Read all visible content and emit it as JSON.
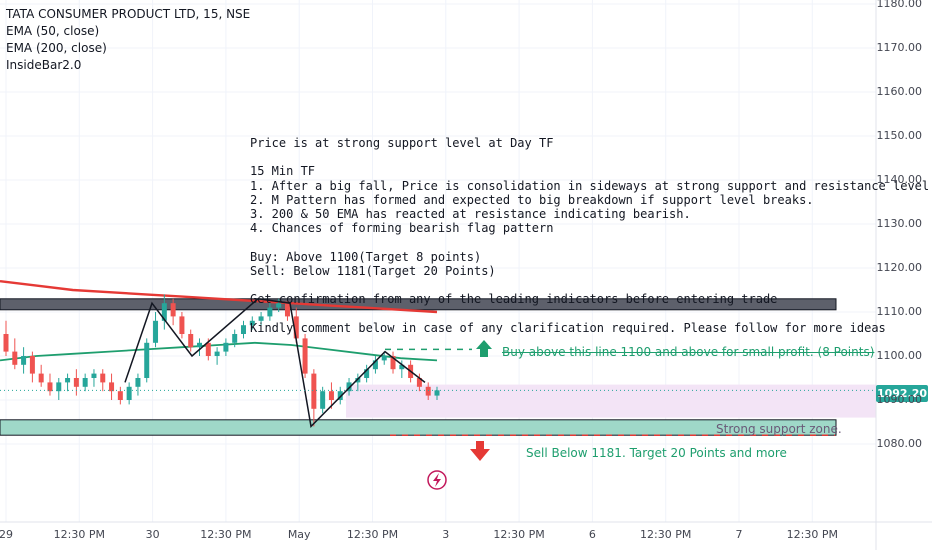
{
  "legend": {
    "symbol": "TATA CONSUMER PRODUCT LTD, 15, NSE",
    "ema50": "EMA (50, close)",
    "ema200": "EMA (200, close)",
    "indicator": "InsideBar2.0"
  },
  "note_text": "Price is at strong support level at Day TF\n\n15 Min TF\n1. After a big fall, Price is consolidation in sideways at strong support and resistance level.\n2. M Pattern has formed and expected to big breakdown if support level breaks.\n3. 200 & 50 EMA has reacted at resistance indicating bearish.\n4. Chances of forming bearish flag pattern\n\nBuy: Above 1100(Target 8 points)\nSell: Below 1181(Target 20 Points)\n\nGet confirmation from any of the leading indicators before entering trade\n\nKindly comment below in case of any clarification required. Please follow for more ideas",
  "annotations": {
    "buy_text": "Buy above this line 1100 and above  for small profit. (8 Points)",
    "sell_text": "Sell Below 1181. Target 20 Points and more",
    "support_text": "Strong support zone."
  },
  "current_price": "1092.20",
  "colors": {
    "up": "#26a69a",
    "down": "#ef5350",
    "ema50": "#1e9e6e",
    "ema200": "#e53935",
    "buy": "#1e9e6e",
    "sell": "#e53935",
    "support_fill": "#9fd8c8",
    "resistance_fill": "#5d606b",
    "range_fill": "#f3e4f6"
  },
  "chart_data": {
    "type": "candlestick",
    "y_ticks": [
      "1180.00",
      "1170.00",
      "1160.00",
      "1150.00",
      "1140.00",
      "1130.00",
      "1120.00",
      "1110.00",
      "1100.00",
      "1090.00",
      "1080.00"
    ],
    "x_ticks": [
      "29",
      "12:30 PM",
      "30",
      "12:30 PM",
      "May",
      "12:30 PM",
      "3",
      "12:30 PM",
      "6",
      "12:30 PM",
      "7",
      "12:30 PM"
    ],
    "ylim": [
      1076,
      1181
    ],
    "resistance_zone": [
      1110.5,
      1113
    ],
    "support_zone": [
      1082,
      1085.5
    ],
    "buy_line": 1101.5,
    "sell_line": 1082,
    "candles": [
      {
        "o": 1105,
        "h": 1108,
        "c": 1101,
        "l": 1100
      },
      {
        "o": 1101,
        "h": 1104,
        "c": 1098,
        "l": 1097
      },
      {
        "o": 1098,
        "h": 1102,
        "c": 1100,
        "l": 1096
      },
      {
        "o": 1100,
        "h": 1101,
        "c": 1096,
        "l": 1094
      },
      {
        "o": 1096,
        "h": 1098,
        "c": 1094,
        "l": 1093
      },
      {
        "o": 1094,
        "h": 1096,
        "c": 1092,
        "l": 1091
      },
      {
        "o": 1092,
        "h": 1095,
        "c": 1094,
        "l": 1090
      },
      {
        "o": 1094,
        "h": 1096,
        "c": 1095,
        "l": 1092
      },
      {
        "o": 1095,
        "h": 1097,
        "c": 1093,
        "l": 1091
      },
      {
        "o": 1093,
        "h": 1096,
        "c": 1095,
        "l": 1092
      },
      {
        "o": 1095,
        "h": 1097,
        "c": 1096,
        "l": 1093
      },
      {
        "o": 1096,
        "h": 1097,
        "c": 1094,
        "l": 1092
      },
      {
        "o": 1094,
        "h": 1096,
        "c": 1092,
        "l": 1090
      },
      {
        "o": 1092,
        "h": 1093,
        "c": 1090,
        "l": 1089
      },
      {
        "o": 1090,
        "h": 1094,
        "c": 1093,
        "l": 1089
      },
      {
        "o": 1093,
        "h": 1096,
        "c": 1095,
        "l": 1091
      },
      {
        "o": 1095,
        "h": 1104,
        "c": 1103,
        "l": 1094
      },
      {
        "o": 1103,
        "h": 1110,
        "c": 1108,
        "l": 1102
      },
      {
        "o": 1108,
        "h": 1114,
        "c": 1112,
        "l": 1106
      },
      {
        "o": 1112,
        "h": 1113,
        "c": 1109,
        "l": 1107
      },
      {
        "o": 1109,
        "h": 1110,
        "c": 1105,
        "l": 1104
      },
      {
        "o": 1105,
        "h": 1106,
        "c": 1102,
        "l": 1101
      },
      {
        "o": 1102,
        "h": 1104,
        "c": 1103,
        "l": 1100
      },
      {
        "o": 1103,
        "h": 1104,
        "c": 1100,
        "l": 1099
      },
      {
        "o": 1100,
        "h": 1102,
        "c": 1101,
        "l": 1098
      },
      {
        "o": 1101,
        "h": 1104,
        "c": 1103,
        "l": 1100
      },
      {
        "o": 1103,
        "h": 1106,
        "c": 1105,
        "l": 1102
      },
      {
        "o": 1105,
        "h": 1108,
        "c": 1107,
        "l": 1104
      },
      {
        "o": 1107,
        "h": 1109,
        "c": 1108,
        "l": 1106
      },
      {
        "o": 1108,
        "h": 1110,
        "c": 1109,
        "l": 1107
      },
      {
        "o": 1109,
        "h": 1112,
        "c": 1111,
        "l": 1108
      },
      {
        "o": 1111,
        "h": 1113,
        "c": 1112,
        "l": 1110
      },
      {
        "o": 1112,
        "h": 1113,
        "c": 1109,
        "l": 1108
      },
      {
        "o": 1109,
        "h": 1111,
        "c": 1104,
        "l": 1103
      },
      {
        "o": 1104,
        "h": 1105,
        "c": 1096,
        "l": 1095
      },
      {
        "o": 1096,
        "h": 1097,
        "c": 1088,
        "l": 1084
      },
      {
        "o": 1088,
        "h": 1093,
        "c": 1092,
        "l": 1087
      },
      {
        "o": 1092,
        "h": 1094,
        "c": 1090,
        "l": 1088
      },
      {
        "o": 1090,
        "h": 1093,
        "c": 1092,
        "l": 1089
      },
      {
        "o": 1092,
        "h": 1095,
        "c": 1094,
        "l": 1091
      },
      {
        "o": 1094,
        "h": 1096,
        "c": 1095,
        "l": 1092
      },
      {
        "o": 1095,
        "h": 1098,
        "c": 1097,
        "l": 1094
      },
      {
        "o": 1097,
        "h": 1100,
        "c": 1099,
        "l": 1096
      },
      {
        "o": 1099,
        "h": 1101,
        "c": 1100,
        "l": 1098
      },
      {
        "o": 1100,
        "h": 1101,
        "c": 1097,
        "l": 1096
      },
      {
        "o": 1097,
        "h": 1099,
        "c": 1098,
        "l": 1095
      },
      {
        "o": 1098,
        "h": 1099,
        "c": 1095,
        "l": 1094
      },
      {
        "o": 1095,
        "h": 1096,
        "c": 1093,
        "l": 1092
      },
      {
        "o": 1093,
        "h": 1094,
        "c": 1091,
        "l": 1090
      },
      {
        "o": 1091,
        "h": 1093,
        "c": 1092.2,
        "l": 1090
      }
    ],
    "ema50": [
      1099,
      1100,
      1100.5,
      1101,
      1101.5,
      1102,
      1102.5,
      1103,
      1102.5,
      1101.5,
      1100.5,
      1099.5,
      1099
    ],
    "ema200": [
      1117,
      1116,
      1115,
      1114.5,
      1114,
      1113.5,
      1113,
      1112.5,
      1112,
      1111.5,
      1111,
      1110.5,
      1110
    ]
  }
}
